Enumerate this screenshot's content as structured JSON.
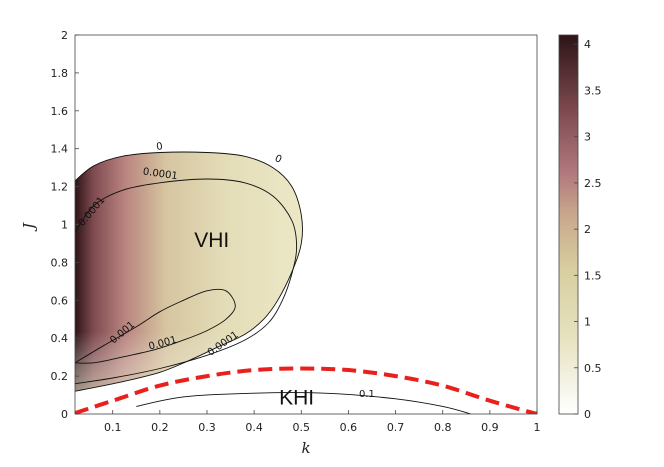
{
  "chart_data": {
    "type": "heatmap",
    "title": "",
    "xlabel": "k",
    "ylabel": "J",
    "xlim": [
      0.02,
      1
    ],
    "ylim": [
      0,
      2
    ],
    "x_ticks": [
      "0.1",
      "0.2",
      "0.3",
      "0.4",
      "0.5",
      "0.6",
      "0.7",
      "0.8",
      "0.9",
      "1"
    ],
    "y_ticks": [
      "0",
      "0.2",
      "0.4",
      "0.6",
      "0.8",
      "1",
      "1.2",
      "1.4",
      "1.6",
      "1.8",
      "2"
    ],
    "colorbar": {
      "range": [
        0,
        4.1
      ],
      "ticks": [
        "0",
        "0.5",
        "1",
        "1.5",
        "2",
        "2.5",
        "3",
        "3.5",
        "4"
      ],
      "colors": [
        "#ffffff",
        "#e9e6c8",
        "#ddd6a6",
        "#c9a98c",
        "#b37b7f",
        "#7e4a50",
        "#2d1416"
      ]
    },
    "regions": [
      {
        "name": "VHI",
        "k": 0.31,
        "J": 0.88
      },
      {
        "name": "KHI",
        "k": 0.49,
        "J": 0.05
      }
    ],
    "contours": [
      {
        "level": "0",
        "points": [
          [
            0.02,
            1.23
          ],
          [
            0.06,
            1.31
          ],
          [
            0.12,
            1.36
          ],
          [
            0.2,
            1.38
          ],
          [
            0.3,
            1.38
          ],
          [
            0.38,
            1.36
          ],
          [
            0.44,
            1.3
          ],
          [
            0.48,
            1.2
          ],
          [
            0.5,
            1.05
          ],
          [
            0.5,
            0.9
          ],
          [
            0.48,
            0.75
          ],
          [
            0.45,
            0.6
          ],
          [
            0.42,
            0.5
          ],
          [
            0.38,
            0.42
          ],
          [
            0.32,
            0.35
          ],
          [
            0.26,
            0.28
          ],
          [
            0.2,
            0.22
          ],
          [
            0.12,
            0.17
          ],
          [
            0.02,
            0.12
          ]
        ]
      },
      {
        "level": "0.0001",
        "points": [
          [
            0.02,
            0.96
          ],
          [
            0.06,
            1.1
          ],
          [
            0.12,
            1.18
          ],
          [
            0.2,
            1.22
          ],
          [
            0.3,
            1.24
          ],
          [
            0.38,
            1.22
          ],
          [
            0.44,
            1.15
          ],
          [
            0.48,
            1.02
          ],
          [
            0.49,
            0.88
          ],
          [
            0.48,
            0.74
          ],
          [
            0.46,
            0.6
          ],
          [
            0.43,
            0.48
          ],
          [
            0.38,
            0.39
          ],
          [
            0.3,
            0.31
          ],
          [
            0.2,
            0.24
          ],
          [
            0.1,
            0.19
          ],
          [
            0.02,
            0.16
          ]
        ]
      },
      {
        "level": "0.001",
        "points": [
          [
            0.02,
            0.27
          ],
          [
            0.08,
            0.36
          ],
          [
            0.15,
            0.46
          ],
          [
            0.2,
            0.54
          ],
          [
            0.25,
            0.6
          ],
          [
            0.3,
            0.65
          ],
          [
            0.34,
            0.65
          ],
          [
            0.36,
            0.57
          ],
          [
            0.34,
            0.5
          ],
          [
            0.3,
            0.44
          ],
          [
            0.25,
            0.39
          ],
          [
            0.19,
            0.34
          ],
          [
            0.12,
            0.3
          ],
          [
            0.06,
            0.27
          ],
          [
            0.02,
            0.27
          ]
        ]
      },
      {
        "level": "0.1",
        "points": [
          [
            0.15,
            0.04
          ],
          [
            0.25,
            0.09
          ],
          [
            0.4,
            0.11
          ],
          [
            0.55,
            0.11
          ],
          [
            0.7,
            0.08
          ],
          [
            0.8,
            0.04
          ],
          [
            0.86,
            0.0
          ]
        ]
      }
    ],
    "critical_curve": {
      "style": "red dashed",
      "k": [
        0.02,
        0.1,
        0.2,
        0.3,
        0.4,
        0.5,
        0.6,
        0.7,
        0.8,
        0.9,
        1.0
      ],
      "J": [
        0.005,
        0.07,
        0.15,
        0.2,
        0.232,
        0.24,
        0.232,
        0.2,
        0.15,
        0.07,
        0.0
      ]
    }
  }
}
